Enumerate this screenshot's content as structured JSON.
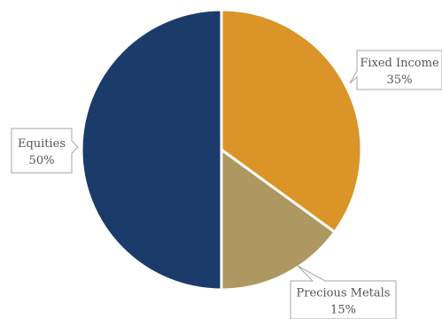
{
  "chart_data": {
    "type": "pie",
    "slices": [
      {
        "label": "Fixed Income",
        "value": 35,
        "value_label": "35%",
        "color": "#DA9427"
      },
      {
        "label": "Precious Metals",
        "value": 15,
        "value_label": "15%",
        "color": "#AF9762"
      },
      {
        "label": "Equities",
        "value": 50,
        "value_label": "50%",
        "color": "#1B3C6A"
      }
    ],
    "start_angle": "12 o'clock",
    "direction": "clockwise",
    "legend": "none",
    "data_labels": "callouts"
  }
}
